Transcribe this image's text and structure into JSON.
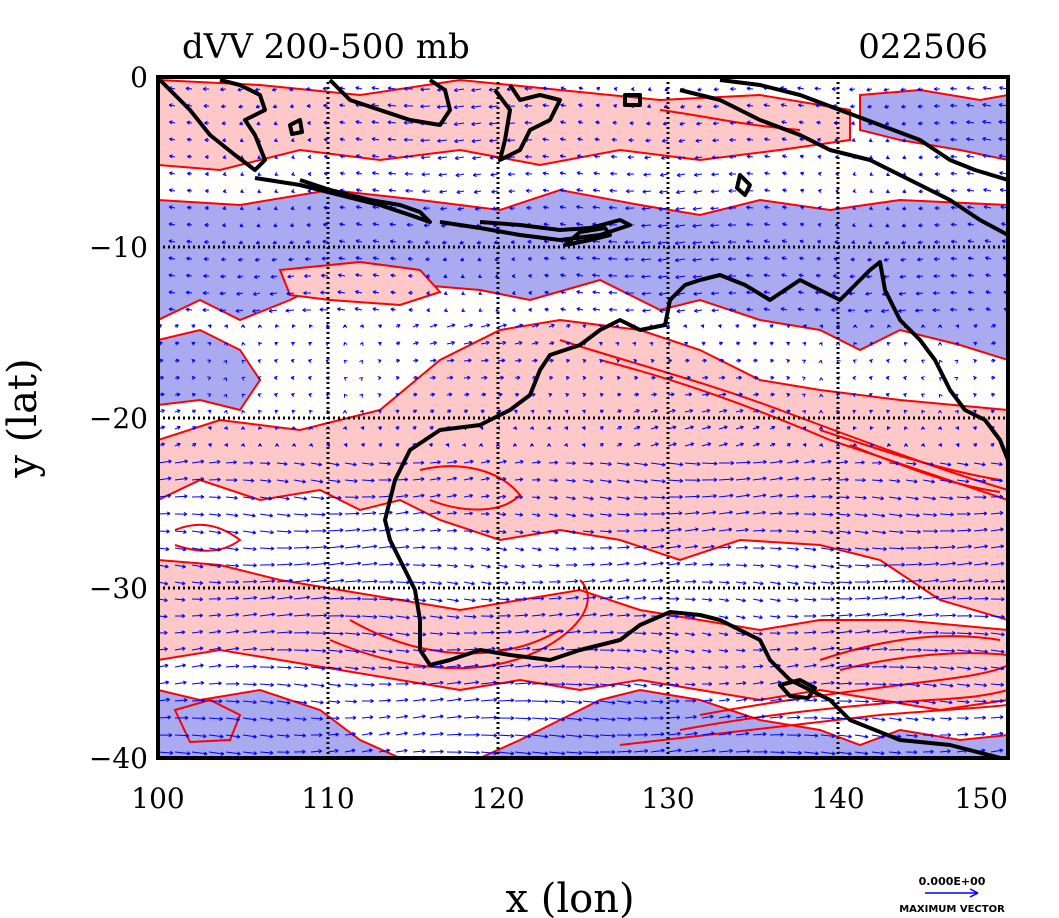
{
  "chart_data": {
    "type": "heatmap",
    "title": "dVV 200-500 mb",
    "date_label": "022506",
    "xlabel": "x (lon)",
    "ylabel": "y (lat)",
    "xlim": [
      100,
      150
    ],
    "ylim": [
      -40,
      0
    ],
    "x_ticks": [
      100,
      110,
      120,
      130,
      140,
      150
    ],
    "y_ticks": [
      0,
      -10,
      -20,
      -30,
      -40
    ],
    "x_tick_labels": [
      "100",
      "110",
      "120",
      "130",
      "140",
      "150"
    ],
    "y_tick_labels": [
      "0",
      "−10",
      "−20",
      "−30",
      "−40"
    ],
    "grid": true,
    "legend": {
      "vector_scale_value": "0.000E+00",
      "vector_label": "MAXIMUM VECTOR"
    },
    "colors": {
      "positive_fill": "#ffc8c8",
      "negative_fill": "#aaaaf0",
      "contour_line": "#ff0000",
      "vector": "#0000ff",
      "coastline": "#000000"
    },
    "series": [
      {
        "name": "",
        "kind": "filled-contour"
      },
      {
        "name": "",
        "kind": "wind-vectors"
      },
      {
        "name": "",
        "kind": "coastline"
      }
    ]
  }
}
